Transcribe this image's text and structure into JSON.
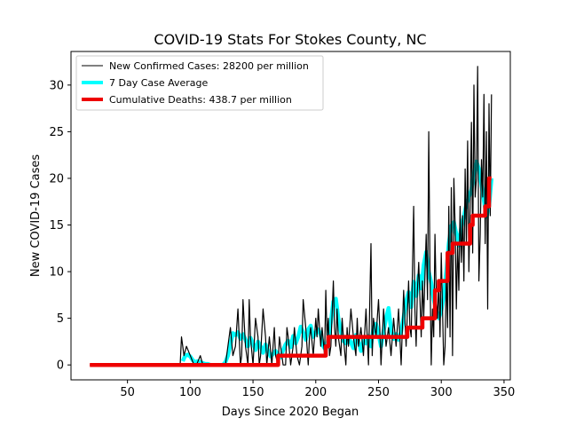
{
  "chart_data": {
    "type": "line",
    "title": "COVID-19 Stats For Stokes County, NC",
    "xlabel": "Days Since 2020 Began",
    "ylabel": "New COVID-19 Cases",
    "xlim": [
      5,
      355
    ],
    "ylim": [
      -1.6,
      33.6
    ],
    "xticks": [
      50,
      100,
      150,
      200,
      250,
      300,
      350
    ],
    "yticks": [
      0,
      5,
      10,
      15,
      20,
      25,
      30
    ],
    "grid": false,
    "legend_position": "top-left",
    "series": [
      {
        "name": "New Confirmed Cases: 28200 per million",
        "color": "#000000",
        "style": "thin",
        "x": [
          20,
          60,
          85,
          92,
          93,
          95,
          97,
          100,
          103,
          105,
          108,
          110,
          113,
          118,
          123,
          128,
          131,
          132,
          134,
          136,
          138,
          140,
          141,
          142,
          144,
          146,
          147,
          148,
          150,
          152,
          154,
          155,
          156,
          158,
          160,
          161,
          163,
          165,
          167,
          168,
          170,
          171,
          172,
          174,
          176,
          177,
          178,
          180,
          182,
          183,
          185,
          187,
          189,
          190,
          192,
          194,
          195,
          196,
          198,
          200,
          201,
          202,
          204,
          205,
          207,
          208,
          209,
          210,
          211,
          212,
          214,
          215,
          216,
          217,
          218,
          220,
          221,
          222,
          224,
          225,
          226,
          228,
          230,
          232,
          233,
          234,
          236,
          238,
          240,
          241,
          242,
          244,
          245,
          246,
          248,
          250,
          251,
          252,
          254,
          256,
          258,
          260,
          261,
          262,
          264,
          266,
          268,
          270,
          271,
          272,
          274,
          275,
          276,
          278,
          279,
          280,
          281,
          282,
          284,
          285,
          286,
          288,
          289,
          290,
          291,
          292,
          293,
          294,
          295,
          296,
          297,
          298,
          299,
          300,
          301,
          302,
          303,
          304,
          305,
          306,
          307,
          308,
          309,
          310,
          311,
          312,
          313,
          314,
          315,
          316,
          317,
          318,
          319,
          320,
          321,
          322,
          323,
          324,
          325,
          326,
          327,
          328,
          329,
          330,
          331,
          332,
          333,
          334,
          335,
          336,
          337,
          338,
          339,
          340
        ],
        "values": [
          0,
          0,
          0,
          0,
          3,
          1,
          2,
          1,
          0,
          0,
          1,
          0,
          0,
          0,
          0,
          0,
          3,
          4,
          1,
          2,
          6,
          0,
          1,
          7,
          2,
          0,
          7,
          3,
          0,
          5,
          3,
          0,
          1,
          6,
          3,
          0,
          3,
          0,
          4,
          1,
          0,
          3,
          2,
          0,
          0,
          4,
          3,
          0,
          2,
          4,
          1,
          0,
          2,
          7,
          4,
          0,
          3,
          4,
          1,
          5,
          3,
          6,
          2,
          4,
          1,
          8,
          3,
          5,
          1,
          2,
          9,
          4,
          2,
          6,
          3,
          1,
          5,
          3,
          0,
          4,
          2,
          6,
          3,
          1,
          5,
          2,
          4,
          1,
          6,
          3,
          0,
          13,
          1,
          5,
          3,
          7,
          4,
          0,
          6,
          2,
          4,
          1,
          3,
          5,
          2,
          6,
          0,
          8,
          5,
          2,
          9,
          4,
          3,
          17,
          6,
          2,
          8,
          11,
          3,
          9,
          5,
          14,
          7,
          25,
          10,
          0,
          6,
          3,
          14,
          7,
          5,
          9,
          3,
          12,
          6,
          0,
          2,
          10,
          4,
          17,
          3,
          19,
          1,
          20,
          15,
          6,
          13,
          8,
          17,
          11,
          16,
          9,
          21,
          13,
          24,
          10,
          17,
          26,
          12,
          30,
          18,
          20,
          32,
          9,
          14,
          22,
          18,
          29,
          13,
          25,
          6,
          28,
          16,
          29
        ]
      },
      {
        "name": "7 Day Case Average",
        "color": "#00ffff",
        "style": "thick",
        "x": [
          94,
          96,
          98,
          100,
          102,
          104,
          106,
          108,
          110,
          112,
          114,
          116,
          118,
          120,
          122,
          124,
          126,
          128,
          130,
          132,
          134,
          136,
          138,
          140,
          142,
          144,
          146,
          148,
          150,
          152,
          154,
          156,
          158,
          160,
          162,
          164,
          166,
          168,
          170,
          172,
          174,
          176,
          178,
          180,
          182,
          184,
          186,
          188,
          190,
          192,
          194,
          196,
          198,
          200,
          202,
          204,
          206,
          208,
          210,
          212,
          214,
          216,
          218,
          220,
          222,
          224,
          226,
          228,
          230,
          232,
          234,
          236,
          238,
          240,
          242,
          244,
          246,
          248,
          250,
          252,
          254,
          256,
          258,
          260,
          262,
          264,
          266,
          268,
          270,
          272,
          274,
          276,
          278,
          280,
          282,
          284,
          286,
          288,
          290,
          292,
          294,
          296,
          298,
          300,
          302,
          304,
          306,
          308,
          310,
          312,
          314,
          316,
          318,
          320,
          322,
          324,
          326,
          328,
          330,
          332,
          334,
          336,
          338,
          340
        ],
        "values": [
          0.4,
          1.0,
          1.1,
          0.9,
          0.5,
          0.3,
          0.4,
          0.3,
          0.2,
          0.1,
          0.1,
          0,
          0,
          0,
          0,
          0,
          0,
          0.3,
          1.0,
          2.2,
          3.4,
          3.2,
          3.5,
          2.8,
          3.3,
          2.7,
          2.0,
          2.9,
          2.3,
          1.6,
          2.5,
          2.0,
          1.3,
          2.2,
          1.5,
          0.9,
          1.2,
          1.5,
          1.1,
          0.8,
          1.6,
          2.2,
          2.6,
          1.9,
          3.1,
          2.3,
          3.0,
          4.1,
          3.5,
          2.7,
          3.8,
          4.2,
          3.0,
          3.5,
          3.8,
          3.2,
          2.0,
          1.6,
          2.8,
          4.6,
          6.8,
          7.1,
          5.0,
          3.6,
          2.6,
          2.3,
          3.0,
          2.4,
          1.8,
          3.2,
          2.5,
          1.5,
          2.6,
          2.3,
          3.1,
          2.0,
          4.0,
          4.4,
          3.3,
          2.0,
          3.6,
          5.0,
          6.1,
          3.8,
          2.8,
          3.3,
          2.7,
          3.6,
          5.1,
          6.8,
          7.8,
          6.2,
          8.9,
          7.4,
          9.6,
          8.2,
          10.7,
          12.1,
          10.0,
          8.8,
          7.0,
          5.8,
          5.0,
          5.8,
          7.4,
          10.0,
          13.0,
          14.9,
          15.3,
          14.0,
          12.8,
          14.8,
          15.9,
          17.2,
          18.0,
          18.8,
          20.5,
          21.8,
          21.0,
          19.3,
          17.6,
          15.9,
          17.0,
          20.0
        ]
      },
      {
        "name": "Cumulative Deaths: 438.7 per million",
        "color": "#ee0000",
        "style": "thick-step",
        "x": [
          20,
          170,
          170,
          208,
          208,
          210,
          210,
          273,
          273,
          285,
          285,
          295,
          295,
          298,
          298,
          305,
          305,
          309,
          309,
          323,
          323,
          325,
          325,
          335,
          335,
          338,
          338,
          340
        ],
        "values": [
          0,
          0,
          1,
          1,
          2,
          2,
          3,
          3,
          4,
          4,
          5,
          5,
          8,
          8,
          9,
          9,
          12,
          12,
          13,
          13,
          15,
          15,
          16,
          16,
          17,
          17,
          20,
          20
        ]
      }
    ]
  }
}
